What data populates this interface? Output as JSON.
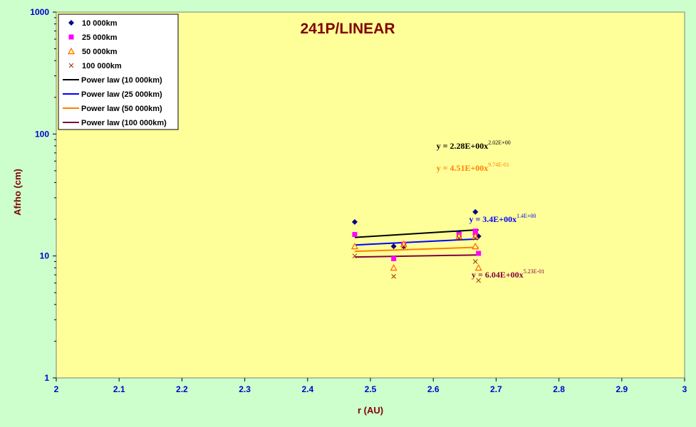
{
  "colors": {
    "background": "#ccffcc",
    "plot_area": "#ffff99",
    "series_10000": "#000080",
    "series_25000": "#ff00ff",
    "series_50000": "#ff6600",
    "series_100000": "#993300",
    "fit_10000": "#000000",
    "fit_25000": "#0000ff",
    "fit_50000": "#ff8000",
    "fit_100000": "#800040"
  },
  "chart_data": {
    "type": "scatter",
    "title": "241P/LINEAR",
    "xlabel": "r (AU)",
    "ylabel": "Afrho (cm)",
    "xlim": [
      2,
      3
    ],
    "ylim": [
      1,
      1000
    ],
    "y_scale": "log",
    "x_ticks": [
      "2",
      "2.1",
      "2.2",
      "2.3",
      "2.4",
      "2.5",
      "2.6",
      "2.7",
      "2.8",
      "2.9",
      "3"
    ],
    "y_ticks": [
      "1",
      "10",
      "100",
      "1000"
    ],
    "legend_position": "top-left",
    "series": [
      {
        "name": "10 000km",
        "marker": "diamond",
        "color": "#000080",
        "points": [
          [
            2.475,
            19
          ],
          [
            2.537,
            12
          ],
          [
            2.553,
            12
          ],
          [
            2.641,
            15.5
          ],
          [
            2.667,
            23
          ],
          [
            2.667,
            15
          ],
          [
            2.672,
            14.5
          ]
        ]
      },
      {
        "name": "25 000km",
        "marker": "square",
        "color": "#ff00ff",
        "points": [
          [
            2.475,
            15
          ],
          [
            2.537,
            9.5
          ],
          [
            2.553,
            12.5
          ],
          [
            2.641,
            15
          ],
          [
            2.667,
            16
          ],
          [
            2.667,
            15.5
          ],
          [
            2.672,
            10.5
          ]
        ]
      },
      {
        "name": "50 000km",
        "marker": "triangle",
        "color": "#ff6600",
        "points": [
          [
            2.475,
            12
          ],
          [
            2.537,
            8
          ],
          [
            2.553,
            12.5
          ],
          [
            2.641,
            14.5
          ],
          [
            2.667,
            14.5
          ],
          [
            2.667,
            12
          ],
          [
            2.672,
            8
          ]
        ]
      },
      {
        "name": "100 000km",
        "marker": "x",
        "color": "#993300",
        "points": [
          [
            2.475,
            10
          ],
          [
            2.537,
            6.8
          ],
          [
            2.553,
            12
          ],
          [
            2.641,
            14
          ],
          [
            2.667,
            14
          ],
          [
            2.667,
            9
          ],
          [
            2.672,
            6.3
          ]
        ]
      }
    ],
    "fits": [
      {
        "name": "Power law (10 000km)",
        "color": "#000000",
        "x": [
          2.475,
          2.672
        ],
        "y": [
          14.2,
          16.4
        ],
        "equation": {
          "text": "y = 2.28E+00x",
          "exponent": "2.02E+00",
          "color": "#000000",
          "anchor": [
            2.605,
            76
          ]
        }
      },
      {
        "name": "Power law (25 000km)",
        "color": "#0000ff",
        "x": [
          2.475,
          2.672
        ],
        "y": [
          12.3,
          13.8
        ],
        "equation": {
          "text": "y = 3.4E+00x",
          "exponent": "1.4E+00",
          "color": "#0000ff",
          "anchor": [
            2.657,
            19
          ]
        }
      },
      {
        "name": "Power law (50 000km)",
        "color": "#ff8000",
        "x": [
          2.475,
          2.672
        ],
        "y": [
          10.9,
          11.8
        ],
        "equation": {
          "text": "y = 4.51E+00x",
          "exponent": "9.74E-01",
          "color": "#ff8000",
          "anchor": [
            2.605,
            50
          ]
        }
      },
      {
        "name": "Power law (100 000km)",
        "color": "#800040",
        "x": [
          2.475,
          2.672
        ],
        "y": [
          9.8,
          10.2
        ],
        "equation": {
          "text": "y = 6.04E+00x",
          "exponent": "5.23E-01",
          "color": "#800040",
          "anchor": [
            2.661,
            6.65
          ]
        }
      }
    ]
  }
}
